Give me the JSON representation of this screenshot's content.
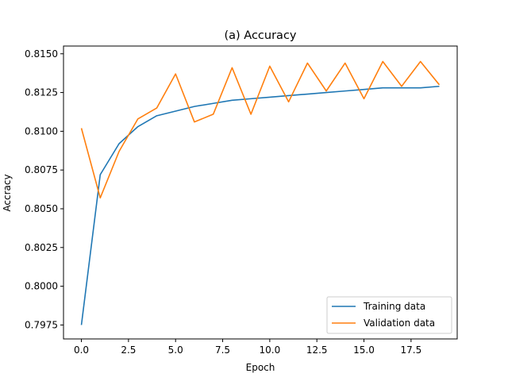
{
  "chart_data": {
    "type": "line",
    "title": "(a) Accuracy",
    "xlabel": "Epoch",
    "ylabel": "Accracy",
    "xlim": [
      -0.95,
      19.95
    ],
    "ylim": [
      0.7966,
      0.8155
    ],
    "xticks": [
      0.0,
      2.5,
      5.0,
      7.5,
      10.0,
      12.5,
      15.0,
      17.5
    ],
    "xtick_labels": [
      "0.0",
      "2.5",
      "5.0",
      "7.5",
      "10.0",
      "12.5",
      "15.0",
      "17.5"
    ],
    "yticks": [
      0.7975,
      0.8,
      0.8025,
      0.805,
      0.8075,
      0.81,
      0.8125,
      0.815
    ],
    "ytick_labels": [
      "0.7975",
      "0.8000",
      "0.8025",
      "0.8050",
      "0.8075",
      "0.8100",
      "0.8125",
      "0.8150"
    ],
    "grid": false,
    "legend_position": "lower-right",
    "x": [
      0,
      1,
      2,
      3,
      4,
      5,
      6,
      7,
      8,
      9,
      10,
      11,
      12,
      13,
      14,
      15,
      16,
      17,
      18,
      19
    ],
    "series": [
      {
        "name": "Training data",
        "color": "#1f77b4",
        "values": [
          0.7975,
          0.8072,
          0.8092,
          0.8103,
          0.811,
          0.8113,
          0.8116,
          0.8118,
          0.812,
          0.8121,
          0.8122,
          0.8123,
          0.8124,
          0.8125,
          0.8126,
          0.8127,
          0.8128,
          0.8128,
          0.8128,
          0.8129
        ]
      },
      {
        "name": "Validation data",
        "color": "#ff7f0e",
        "values": [
          0.8102,
          0.8057,
          0.8087,
          0.8108,
          0.8115,
          0.8137,
          0.8106,
          0.8111,
          0.8141,
          0.8111,
          0.8142,
          0.8119,
          0.8144,
          0.8126,
          0.8144,
          0.8121,
          0.8145,
          0.8129,
          0.8145,
          0.813
        ]
      }
    ]
  }
}
